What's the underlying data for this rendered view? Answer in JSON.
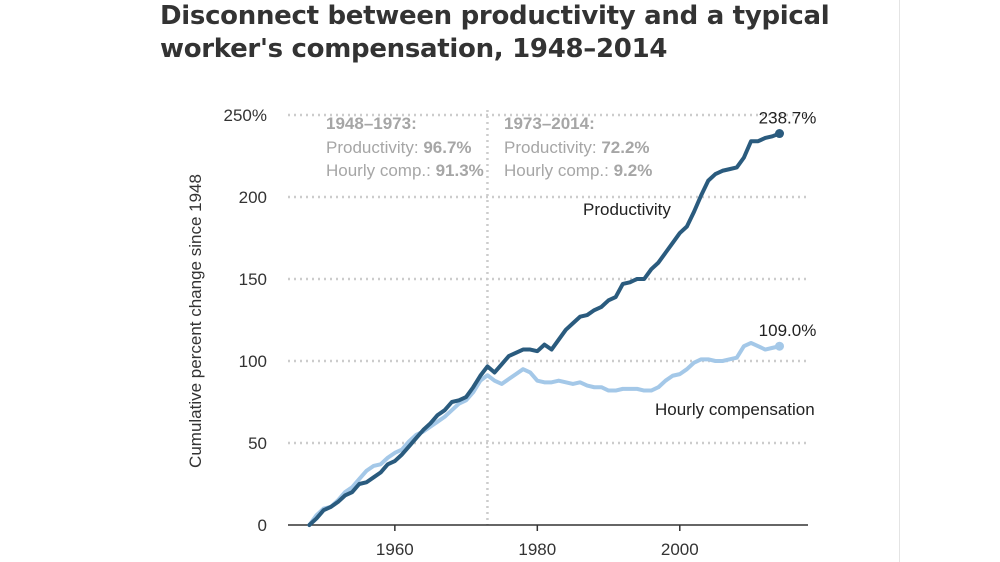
{
  "title": "Disconnect between productivity and a typical worker's compensation, 1948–2014",
  "colors": {
    "productivity": "#2a5b7e",
    "compensation": "#a4c8e8",
    "grid": "#cccccc",
    "annotation": "#a6a6a6",
    "axis": "#333333"
  },
  "annotations": {
    "period1": {
      "heading": "1948–1973:",
      "productivity_label": "Productivity: ",
      "productivity_value": "96.7%",
      "comp_label": "Hourly comp.: ",
      "comp_value": "91.3%"
    },
    "period2": {
      "heading": "1973–2014:",
      "productivity_label": "Productivity: ",
      "productivity_value": "72.2%",
      "comp_label": "Hourly comp.: ",
      "comp_value": "9.2%"
    }
  },
  "chart_data": {
    "type": "line",
    "title": "Disconnect between productivity and a typical worker's compensation, 1948–2014",
    "xlabel": "",
    "ylabel": "Cumulative percent change since 1948",
    "xlim": [
      1945,
      2018
    ],
    "ylim": [
      0,
      250
    ],
    "x_ticks": [
      1960,
      1980,
      2000
    ],
    "y_ticks": [
      0,
      50,
      100,
      150,
      200,
      250
    ],
    "y_tick_labels": [
      "0",
      "50",
      "100",
      "150",
      "200",
      "250%"
    ],
    "grid": true,
    "divider_year": 1973,
    "series": [
      {
        "name": "Productivity",
        "end_label": "238.7%",
        "points": [
          [
            1948,
            0
          ],
          [
            1949,
            4
          ],
          [
            1950,
            9
          ],
          [
            1951,
            11
          ],
          [
            1952,
            14
          ],
          [
            1953,
            18
          ],
          [
            1954,
            20
          ],
          [
            1955,
            25
          ],
          [
            1956,
            26
          ],
          [
            1957,
            29
          ],
          [
            1958,
            32
          ],
          [
            1959,
            37
          ],
          [
            1960,
            39
          ],
          [
            1961,
            43
          ],
          [
            1962,
            48
          ],
          [
            1963,
            53
          ],
          [
            1964,
            58
          ],
          [
            1965,
            62
          ],
          [
            1966,
            67
          ],
          [
            1967,
            70
          ],
          [
            1968,
            75
          ],
          [
            1969,
            76
          ],
          [
            1970,
            78
          ],
          [
            1971,
            84
          ],
          [
            1972,
            91
          ],
          [
            1973,
            96.7
          ],
          [
            1974,
            93
          ],
          [
            1975,
            98
          ],
          [
            1976,
            103
          ],
          [
            1977,
            105
          ],
          [
            1978,
            107
          ],
          [
            1979,
            107
          ],
          [
            1980,
            106
          ],
          [
            1981,
            110
          ],
          [
            1982,
            107
          ],
          [
            1983,
            113
          ],
          [
            1984,
            119
          ],
          [
            1985,
            123
          ],
          [
            1986,
            127
          ],
          [
            1987,
            128
          ],
          [
            1988,
            131
          ],
          [
            1989,
            133
          ],
          [
            1990,
            137
          ],
          [
            1991,
            139
          ],
          [
            1992,
            147
          ],
          [
            1993,
            148
          ],
          [
            1994,
            150
          ],
          [
            1995,
            150
          ],
          [
            1996,
            156
          ],
          [
            1997,
            160
          ],
          [
            1998,
            166
          ],
          [
            1999,
            172
          ],
          [
            2000,
            178
          ],
          [
            2001,
            182
          ],
          [
            2002,
            191
          ],
          [
            2003,
            201
          ],
          [
            2004,
            210
          ],
          [
            2005,
            214
          ],
          [
            2006,
            216
          ],
          [
            2007,
            217
          ],
          [
            2008,
            218
          ],
          [
            2009,
            224
          ],
          [
            2010,
            234
          ],
          [
            2011,
            234
          ],
          [
            2012,
            236
          ],
          [
            2013,
            237
          ],
          [
            2014,
            238.7
          ]
        ]
      },
      {
        "name": "Hourly compensation",
        "end_label": "109.0%",
        "points": [
          [
            1948,
            0
          ],
          [
            1949,
            6
          ],
          [
            1950,
            10
          ],
          [
            1951,
            11
          ],
          [
            1952,
            15
          ],
          [
            1953,
            20
          ],
          [
            1954,
            23
          ],
          [
            1955,
            28
          ],
          [
            1956,
            33
          ],
          [
            1957,
            36
          ],
          [
            1958,
            37
          ],
          [
            1959,
            41
          ],
          [
            1960,
            44
          ],
          [
            1961,
            46
          ],
          [
            1962,
            51
          ],
          [
            1963,
            55
          ],
          [
            1964,
            57
          ],
          [
            1965,
            60
          ],
          [
            1966,
            63
          ],
          [
            1967,
            66
          ],
          [
            1968,
            70
          ],
          [
            1969,
            74
          ],
          [
            1970,
            76
          ],
          [
            1971,
            81
          ],
          [
            1972,
            88
          ],
          [
            1973,
            91.3
          ],
          [
            1974,
            88
          ],
          [
            1975,
            86
          ],
          [
            1976,
            89
          ],
          [
            1977,
            92
          ],
          [
            1978,
            95
          ],
          [
            1979,
            93
          ],
          [
            1980,
            88
          ],
          [
            1981,
            87
          ],
          [
            1982,
            87
          ],
          [
            1983,
            88
          ],
          [
            1984,
            87
          ],
          [
            1985,
            86
          ],
          [
            1986,
            87
          ],
          [
            1987,
            85
          ],
          [
            1988,
            84
          ],
          [
            1989,
            84
          ],
          [
            1990,
            82
          ],
          [
            1991,
            82
          ],
          [
            1992,
            83
          ],
          [
            1993,
            83
          ],
          [
            1994,
            83
          ],
          [
            1995,
            82
          ],
          [
            1996,
            82
          ],
          [
            1997,
            84
          ],
          [
            1998,
            88
          ],
          [
            1999,
            91
          ],
          [
            2000,
            92
          ],
          [
            2001,
            95
          ],
          [
            2002,
            99
          ],
          [
            2003,
            101
          ],
          [
            2004,
            101
          ],
          [
            2005,
            100
          ],
          [
            2006,
            100
          ],
          [
            2007,
            101
          ],
          [
            2008,
            102
          ],
          [
            2009,
            109
          ],
          [
            2010,
            111
          ],
          [
            2011,
            109
          ],
          [
            2012,
            107
          ],
          [
            2013,
            108
          ],
          [
            2014,
            109.0
          ]
        ]
      }
    ]
  }
}
